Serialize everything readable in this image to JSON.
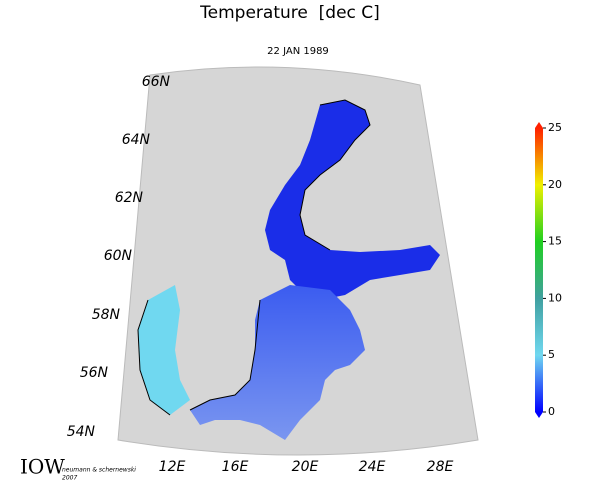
{
  "header": {
    "title": "Temperature  [dec C]",
    "date": "22 JAN 1989"
  },
  "map": {
    "lat_labels": [
      "66N",
      "64N",
      "62N",
      "60N",
      "58N",
      "56N",
      "54N"
    ],
    "lon_labels": [
      "12E",
      "16E",
      "20E",
      "24E",
      "28E"
    ]
  },
  "colorbar": {
    "range": [
      0,
      25
    ],
    "ticks": [
      0,
      5,
      10,
      15,
      20,
      25
    ]
  },
  "credit": {
    "logo": "IOW",
    "authors": "neumann & schernewski",
    "year": "2007"
  }
}
